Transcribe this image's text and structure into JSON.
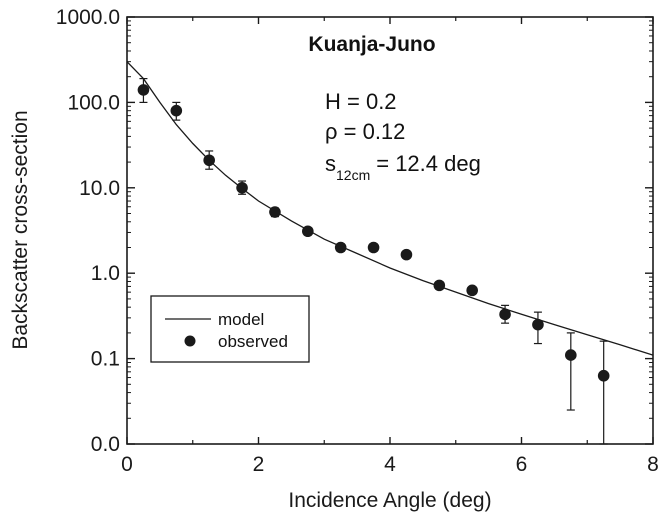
{
  "chart_data": {
    "type": "scatter",
    "title": "Kuanja-Juno",
    "xlabel": "Incidence Angle (deg)",
    "ylabel": "Backscatter cross-section",
    "xlim": [
      0,
      8
    ],
    "ylim": [
      0.01,
      1000
    ],
    "yscale": "log",
    "grid": false,
    "legend_position": "lower-left",
    "x_ticks": [
      0,
      2,
      4,
      6,
      8
    ],
    "x_tick_labels": [
      "0",
      "2",
      "4",
      "6",
      "8"
    ],
    "y_ticks": [
      0.01,
      0.1,
      1,
      10,
      100,
      1000
    ],
    "y_tick_labels": [
      "0.0",
      "0.1",
      "1.0",
      "10.0",
      "100.0",
      "1000.0"
    ],
    "annotations": {
      "h_text": "H = 0.2",
      "rho_text": "ρ = 0.12",
      "s_main": "s",
      "s_sub": "12cm",
      "s_value": "= 12.4 deg"
    },
    "series": [
      {
        "name": "model",
        "kind": "line",
        "x": [
          0.0,
          0.25,
          0.5,
          0.75,
          1.0,
          1.25,
          1.5,
          1.75,
          2.0,
          2.5,
          3.0,
          3.5,
          4.0,
          4.5,
          5.0,
          5.5,
          6.0,
          6.5,
          7.0,
          7.5,
          8.0
        ],
        "y": [
          300,
          190,
          100,
          55,
          33,
          21,
          14,
          9.8,
          7.0,
          4.1,
          2.5,
          1.7,
          1.15,
          0.82,
          0.6,
          0.44,
          0.33,
          0.25,
          0.19,
          0.145,
          0.11
        ]
      },
      {
        "name": "observed",
        "kind": "points",
        "x": [
          0.25,
          0.75,
          1.25,
          1.75,
          2.25,
          2.75,
          3.25,
          3.75,
          4.25,
          4.75,
          5.25,
          5.75,
          6.25,
          6.75,
          7.25
        ],
        "y": [
          140,
          80,
          21,
          10,
          5.2,
          3.1,
          2.0,
          2.0,
          1.65,
          0.72,
          0.63,
          0.33,
          0.25,
          0.11,
          0.063
        ],
        "y_err_low": [
          100,
          62,
          16.5,
          8.4,
          4.6,
          2.8,
          1.8,
          1.8,
          1.5,
          0.65,
          0.57,
          0.26,
          0.15,
          0.025,
          0.01
        ],
        "y_err_high": [
          190,
          100,
          27,
          12,
          5.8,
          3.4,
          2.2,
          2.2,
          1.8,
          0.79,
          0.69,
          0.42,
          0.35,
          0.2,
          0.16
        ]
      }
    ],
    "colors": {
      "ink": "#1a1a1a",
      "background": "#ffffff"
    }
  }
}
